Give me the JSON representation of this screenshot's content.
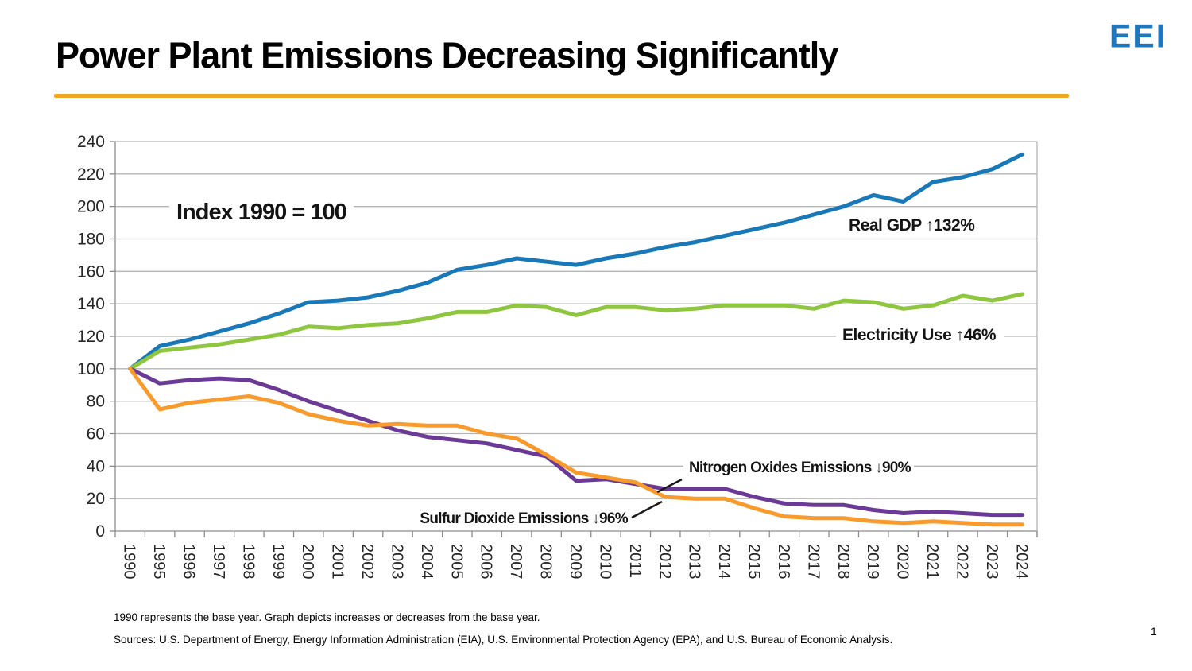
{
  "header": {
    "title": "Power Plant Emissions Decreasing Significantly",
    "logo": "EEI",
    "logo_color": "#2177BE",
    "accent_color": "#EFA71F"
  },
  "chart_data": {
    "type": "line",
    "title": "Power Plant Emissions Decreasing Significantly",
    "index_note": "Index 1990 = 100",
    "xlabel": "",
    "ylabel": "",
    "ylim": [
      0,
      240
    ],
    "ytick_step": 20,
    "grid": "horizontal",
    "legend_position": "inline-annotations",
    "categories": [
      "1990",
      "1995",
      "1996",
      "1997",
      "1998",
      "1999",
      "2000",
      "2001",
      "2002",
      "2003",
      "2004",
      "2005",
      "2006",
      "2007",
      "2008",
      "2009",
      "2010",
      "2011",
      "2012",
      "2013",
      "2014",
      "2015",
      "2016",
      "2017",
      "2018",
      "2019",
      "2020",
      "2021",
      "2022",
      "2023",
      "2024"
    ],
    "series": [
      {
        "name": "Real GDP",
        "label": "Real GDP ↑132%",
        "color": "#1878B8",
        "values": [
          100,
          114,
          118,
          123,
          128,
          134,
          141,
          142,
          144,
          148,
          153,
          161,
          164,
          168,
          166,
          164,
          168,
          171,
          175,
          178,
          182,
          186,
          190,
          195,
          200,
          207,
          203,
          215,
          218,
          223,
          232
        ]
      },
      {
        "name": "Electricity Use",
        "label": "Electricity Use ↑46%",
        "color": "#8EC640",
        "values": [
          100,
          111,
          113,
          115,
          118,
          121,
          126,
          125,
          127,
          128,
          131,
          135,
          135,
          139,
          138,
          133,
          138,
          138,
          136,
          137,
          139,
          139,
          139,
          137,
          142,
          141,
          137,
          139,
          145,
          142,
          146
        ]
      },
      {
        "name": "Nitrogen Oxides Emissions",
        "label": "Nitrogen Oxides Emissions ↓90%",
        "color": "#6B3A96",
        "values": [
          100,
          91,
          93,
          94,
          93,
          87,
          80,
          74,
          68,
          62,
          58,
          56,
          54,
          50,
          46,
          31,
          32,
          29,
          26,
          26,
          26,
          21,
          17,
          16,
          16,
          13,
          11,
          12,
          11,
          10,
          10
        ]
      },
      {
        "name": "Sulfur Dioxide Emissions",
        "label": "Sulfur Dioxide Emissions ↓96%",
        "color": "#F89B2C",
        "values": [
          100,
          75,
          79,
          81,
          83,
          79,
          72,
          68,
          65,
          66,
          65,
          65,
          60,
          57,
          47,
          36,
          33,
          30,
          21,
          20,
          20,
          14,
          9,
          8,
          8,
          6,
          5,
          6,
          5,
          4,
          4
        ]
      }
    ],
    "colors": {
      "gridline": "#B5B5B5",
      "axis": "#8C8C8C"
    }
  },
  "footer": {
    "note": "1990 represents the base year. Graph depicts increases or decreases from the base year.",
    "sources": "Sources: U.S. Department of Energy, Energy Information Administration (EIA), U.S. Environmental Protection Agency (EPA), and U.S. Bureau of Economic Analysis.",
    "page_number": "1"
  }
}
